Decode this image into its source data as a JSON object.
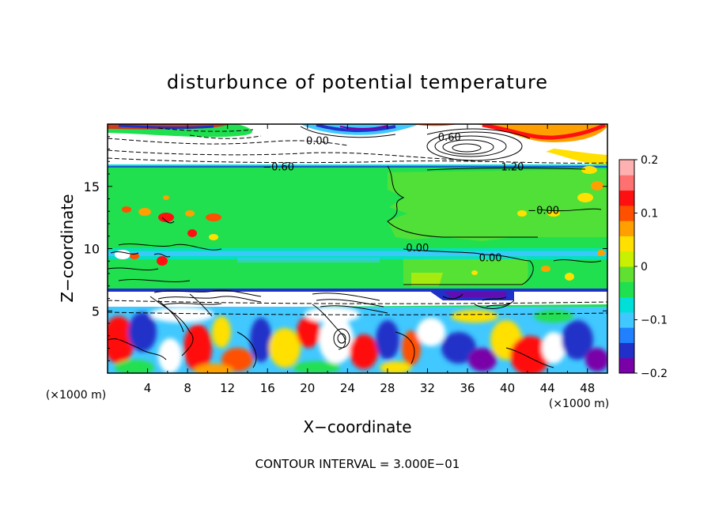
{
  "chart_data": {
    "type": "heatmap",
    "title": "disturbunce of potential temperature",
    "xlabel": "X−coordinate",
    "ylabel": "Z−coordinate",
    "x_unit": "(×1000 m)",
    "y_unit": "(×1000 m)",
    "xlim": [
      0,
      50
    ],
    "ylim": [
      0,
      20
    ],
    "x_ticks": [
      4,
      8,
      12,
      16,
      20,
      24,
      28,
      32,
      36,
      40,
      44,
      48
    ],
    "x_tick_labels": [
      "4",
      "8",
      "12",
      "16",
      "20",
      "24",
      "28",
      "32",
      "36",
      "40",
      "44",
      "48"
    ],
    "y_ticks": [
      5,
      10,
      15
    ],
    "y_tick_labels": [
      "5",
      "10",
      "15"
    ],
    "colorbar": {
      "range": [
        -0.2,
        0.2
      ],
      "ticks": [
        0.2,
        0.1,
        0,
        -0.1,
        -0.2
      ],
      "tick_labels": [
        "0.2",
        "0.1",
        "0",
        "−0.1",
        "−0.2"
      ],
      "colors": [
        "#7a00a8",
        "#2030c8",
        "#2080ff",
        "#40c8ff",
        "#00e0d8",
        "#20e050",
        "#60e030",
        "#c8f000",
        "#ffe000",
        "#ffa000",
        "#ff5000",
        "#ff1010",
        "#ff7070",
        "#ffb0b0"
      ]
    },
    "contour_labels": [
      {
        "text": "0.00",
        "x": 21,
        "z": 18.7
      },
      {
        "text": "0.60",
        "x": 34.2,
        "z": 19.0
      },
      {
        "text": "−0.60",
        "x": 17.1,
        "z": 16.6
      },
      {
        "text": "1.20",
        "x": 40.5,
        "z": 16.6
      },
      {
        "text": "−0.00",
        "x": 43.6,
        "z": 13.1
      },
      {
        "text": "0.00",
        "x": 31.0,
        "z": 10.1
      },
      {
        "text": "0.00",
        "x": 38.3,
        "z": 9.3
      }
    ],
    "annotation": "CONTOUR INTERVAL = 3.000E−01"
  }
}
